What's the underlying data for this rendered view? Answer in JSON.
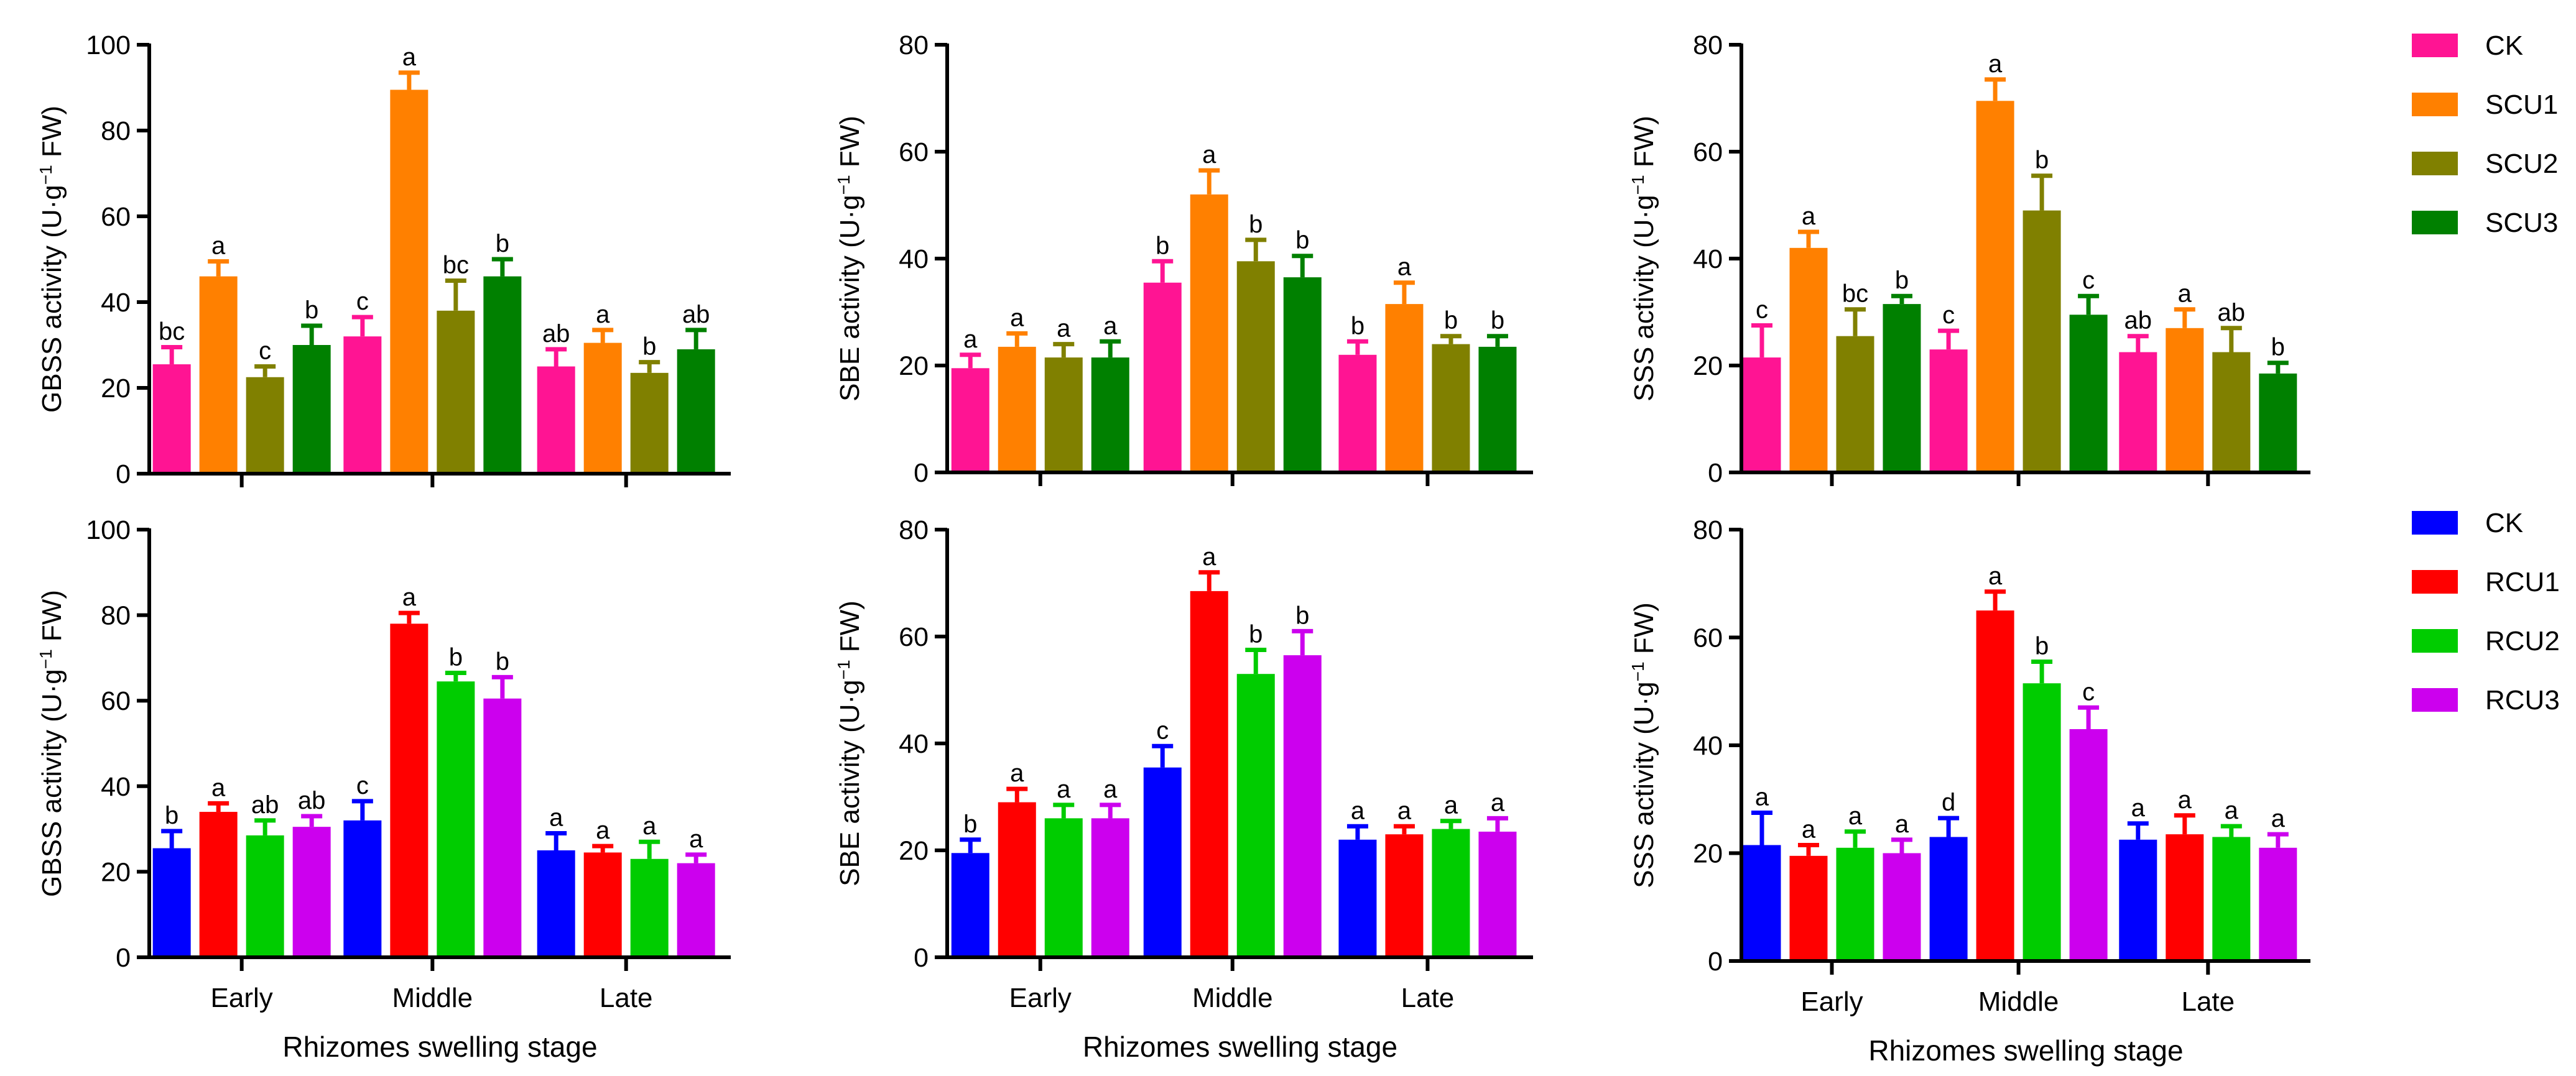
{
  "colors": {
    "top": [
      "#ff1493",
      "#ff8000",
      "#808000",
      "#008000"
    ],
    "bottom": [
      "#0000ff",
      "#ff0000",
      "#00cc00",
      "#cc00ee"
    ]
  },
  "legends": {
    "top": [
      "CK",
      "SCU1",
      "SCU2",
      "SCU3"
    ],
    "bottom": [
      "CK",
      "RCU1",
      "RCU2",
      "RCU3"
    ]
  },
  "chart_data": [
    {
      "type": "bar",
      "panel": "top-left",
      "categories": [
        "Early",
        "Middle",
        "Late"
      ],
      "ylabel": "GBSS activity (U·g",
      "ylabel_sup": "−1",
      "ylabel_tail": " FW)",
      "xlabel": "",
      "ylim": [
        0,
        100
      ],
      "yticks": [
        0,
        20,
        40,
        60,
        80,
        100
      ],
      "legend": "top",
      "series": [
        {
          "name": "CK",
          "values": [
            25.5,
            32,
            25
          ],
          "errors": [
            4,
            4.5,
            4
          ],
          "letters": [
            "bc",
            "c",
            "ab"
          ]
        },
        {
          "name": "SCU1",
          "values": [
            46,
            89.5,
            30.5
          ],
          "errors": [
            3.5,
            4,
            3
          ],
          "letters": [
            "a",
            "a",
            "a"
          ]
        },
        {
          "name": "SCU2",
          "values": [
            22.5,
            38,
            23.5
          ],
          "errors": [
            2.5,
            7,
            2.5
          ],
          "letters": [
            "c",
            "bc",
            "b"
          ]
        },
        {
          "name": "SCU3",
          "values": [
            30,
            46,
            29
          ],
          "errors": [
            4.5,
            4,
            4.5
          ],
          "letters": [
            "b",
            "b",
            "ab"
          ]
        }
      ]
    },
    {
      "type": "bar",
      "panel": "top-middle",
      "categories": [
        "Early",
        "Middle",
        "Late"
      ],
      "ylabel": "SBE activity (U·g",
      "ylabel_sup": "−1",
      "ylabel_tail": " FW)",
      "xlabel": "",
      "ylim": [
        0,
        80
      ],
      "yticks": [
        0,
        20,
        40,
        60,
        80
      ],
      "legend": "top",
      "series": [
        {
          "name": "CK",
          "values": [
            19.5,
            35.5,
            22
          ],
          "errors": [
            2.5,
            4,
            2.5
          ],
          "letters": [
            "a",
            "b",
            "b"
          ]
        },
        {
          "name": "SCU1",
          "values": [
            23.5,
            52,
            31.5
          ],
          "errors": [
            2.5,
            4.5,
            4
          ],
          "letters": [
            "a",
            "a",
            "a"
          ]
        },
        {
          "name": "SCU2",
          "values": [
            21.5,
            39.5,
            24
          ],
          "errors": [
            2.5,
            4,
            1.5
          ],
          "letters": [
            "a",
            "b",
            "b"
          ]
        },
        {
          "name": "SCU3",
          "values": [
            21.5,
            36.5,
            23.5
          ],
          "errors": [
            3,
            4,
            2
          ],
          "letters": [
            "a",
            "b",
            "b"
          ]
        }
      ]
    },
    {
      "type": "bar",
      "panel": "top-right",
      "categories": [
        "Early",
        "Middle",
        "Late"
      ],
      "ylabel": "SSS activity (U·g",
      "ylabel_sup": "−1",
      "ylabel_tail": " FW)",
      "xlabel": "",
      "ylim": [
        0,
        80
      ],
      "yticks": [
        0,
        20,
        40,
        60,
        80
      ],
      "legend": "top",
      "series": [
        {
          "name": "CK",
          "values": [
            21.5,
            23,
            22.5
          ],
          "errors": [
            6,
            3.5,
            3
          ],
          "letters": [
            "c",
            "c",
            "ab"
          ]
        },
        {
          "name": "SCU1",
          "values": [
            42,
            69.5,
            27
          ],
          "errors": [
            3,
            4,
            3.5
          ],
          "letters": [
            "a",
            "a",
            "a"
          ]
        },
        {
          "name": "SCU2",
          "values": [
            25.5,
            49,
            22.5
          ],
          "errors": [
            5,
            6.5,
            4.5
          ],
          "letters": [
            "bc",
            "b",
            "ab"
          ]
        },
        {
          "name": "SCU3",
          "values": [
            31.5,
            29.5,
            18.5
          ],
          "errors": [
            1.5,
            3.5,
            2
          ],
          "letters": [
            "b",
            "c",
            "b"
          ]
        }
      ]
    },
    {
      "type": "bar",
      "panel": "bottom-left",
      "categories": [
        "Early",
        "Middle",
        "Late"
      ],
      "ylabel": "GBSS activity (U·g",
      "ylabel_sup": "−1",
      "ylabel_tail": " FW)",
      "xlabel": "Rhizomes swelling stage",
      "ylim": [
        0,
        100
      ],
      "yticks": [
        0,
        20,
        40,
        60,
        80,
        100
      ],
      "legend": "bottom",
      "series": [
        {
          "name": "CK",
          "values": [
            25.5,
            32,
            25
          ],
          "errors": [
            4,
            4.5,
            4
          ],
          "letters": [
            "b",
            "c",
            "a"
          ]
        },
        {
          "name": "RCU1",
          "values": [
            34,
            78,
            24.5
          ],
          "errors": [
            2,
            2.5,
            1.5
          ],
          "letters": [
            "a",
            "a",
            "a"
          ]
        },
        {
          "name": "RCU2",
          "values": [
            28.5,
            64.5,
            23
          ],
          "errors": [
            3.5,
            2,
            4
          ],
          "letters": [
            "ab",
            "b",
            "a"
          ]
        },
        {
          "name": "RCU3",
          "values": [
            30.5,
            60.5,
            22
          ],
          "errors": [
            2.5,
            5,
            2
          ],
          "letters": [
            "ab",
            "b",
            "a"
          ]
        }
      ]
    },
    {
      "type": "bar",
      "panel": "bottom-middle",
      "categories": [
        "Early",
        "Middle",
        "Late"
      ],
      "ylabel": "SBE activity (U·g",
      "ylabel_sup": "−1",
      "ylabel_tail": " FW)",
      "xlabel": "Rhizomes swelling stage",
      "ylim": [
        0,
        80
      ],
      "yticks": [
        0,
        20,
        40,
        60,
        80
      ],
      "legend": "bottom",
      "series": [
        {
          "name": "CK",
          "values": [
            19.5,
            35.5,
            22
          ],
          "errors": [
            2.5,
            4,
            2.5
          ],
          "letters": [
            "b",
            "c",
            "a"
          ]
        },
        {
          "name": "RCU1",
          "values": [
            29,
            68.5,
            23
          ],
          "errors": [
            2.5,
            3.5,
            1.5
          ],
          "letters": [
            "a",
            "a",
            "a"
          ]
        },
        {
          "name": "RCU2",
          "values": [
            26,
            53,
            24
          ],
          "errors": [
            2.5,
            4.5,
            1.5
          ],
          "letters": [
            "a",
            "b",
            "a"
          ]
        },
        {
          "name": "RCU3",
          "values": [
            26,
            56.5,
            23.5
          ],
          "errors": [
            2.5,
            4.5,
            2.5
          ],
          "letters": [
            "a",
            "b",
            "a"
          ]
        }
      ]
    },
    {
      "type": "bar",
      "panel": "bottom-right",
      "categories": [
        "Early",
        "Middle",
        "Late"
      ],
      "ylabel": "SSS activity (U·g",
      "ylabel_sup": "−1",
      "ylabel_tail": " FW)",
      "xlabel": "Rhizomes swelling stage",
      "ylim": [
        0,
        80
      ],
      "yticks": [
        0,
        20,
        40,
        60,
        80
      ],
      "legend": "bottom",
      "series": [
        {
          "name": "CK",
          "values": [
            21.5,
            23,
            22.5
          ],
          "errors": [
            6,
            3.5,
            3
          ],
          "letters": [
            "a",
            "d",
            "a"
          ]
        },
        {
          "name": "RCU1",
          "values": [
            19.5,
            65,
            23.5
          ],
          "errors": [
            2,
            3.5,
            3.5
          ],
          "letters": [
            "a",
            "a",
            "a"
          ]
        },
        {
          "name": "RCU2",
          "values": [
            21,
            51.5,
            23
          ],
          "errors": [
            3,
            4,
            2
          ],
          "letters": [
            "a",
            "b",
            "a"
          ]
        },
        {
          "name": "RCU3",
          "values": [
            20,
            43,
            21
          ],
          "errors": [
            2.5,
            4,
            2.5
          ],
          "letters": [
            "a",
            "c",
            "a"
          ]
        }
      ]
    }
  ]
}
